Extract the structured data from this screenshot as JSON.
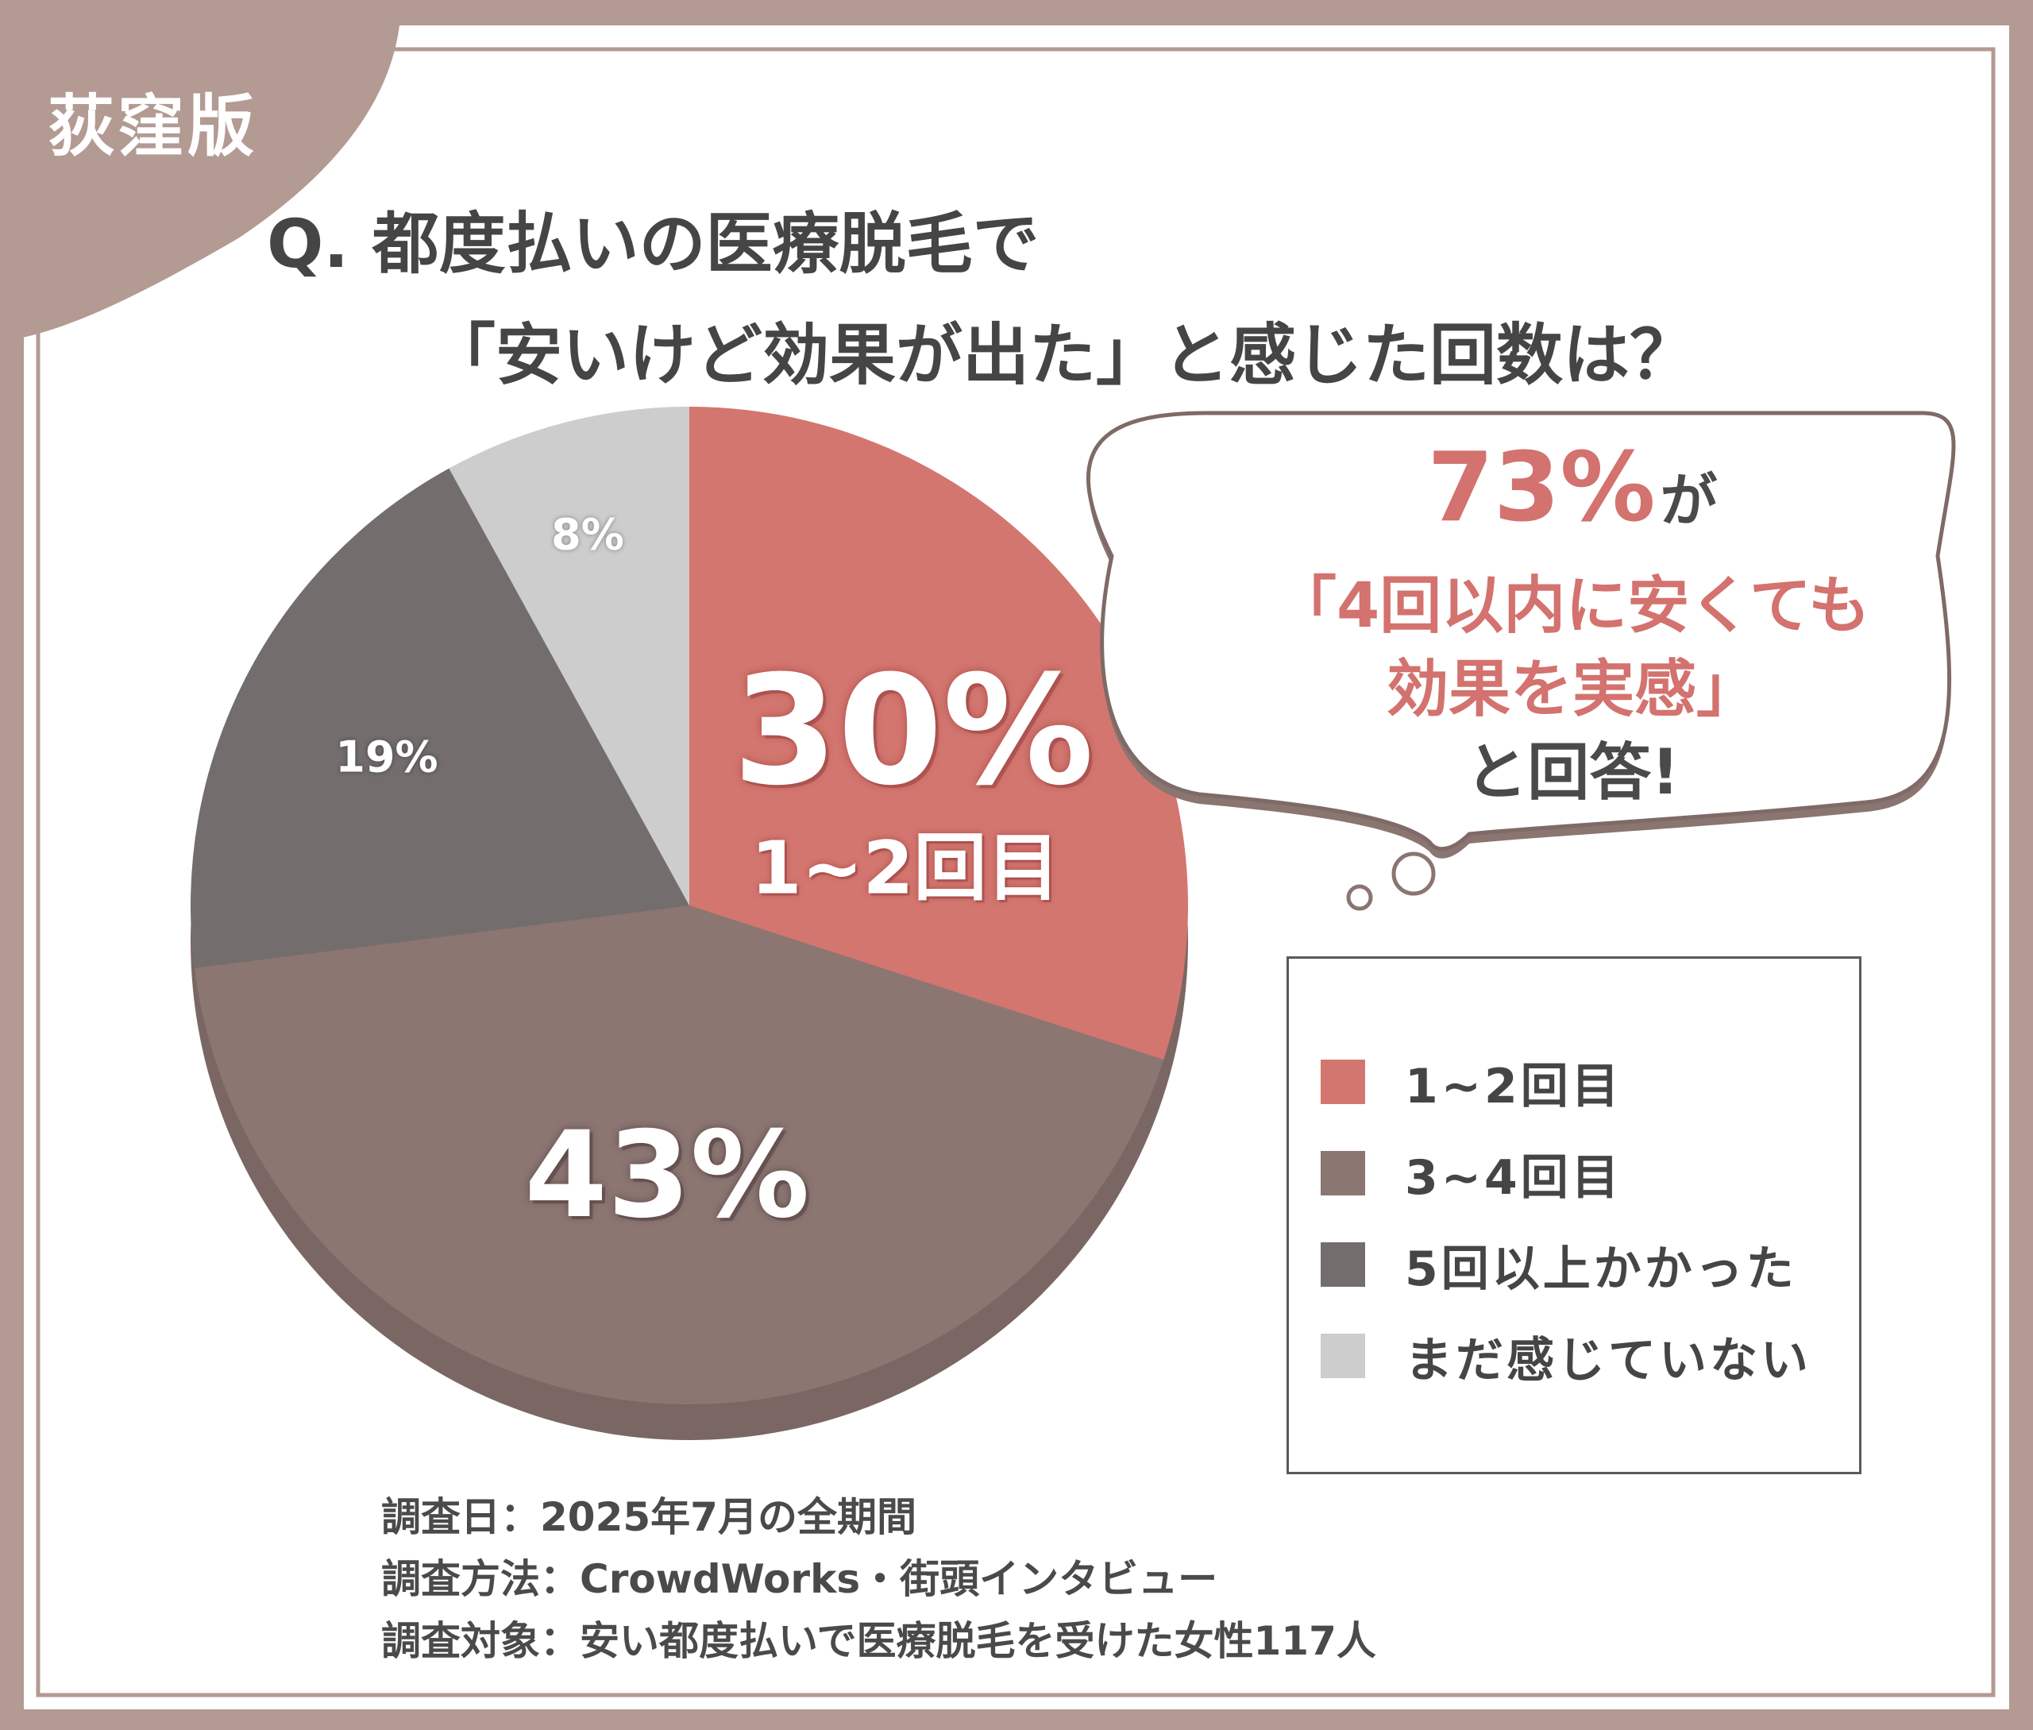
{
  "tag": "荻窪版",
  "title_line1": "Q. 都度払いの医療脱毛で",
  "title_line2": "「安いけど効果が出た」と感じた回数は？",
  "colors": {
    "frame": "#b39a92",
    "bg": "#ffffff",
    "s1": "#d3766f",
    "s2": "#8b7672",
    "s3": "#736d6d",
    "s4": "#cdcdcd"
  },
  "chart_data": {
    "type": "pie",
    "start": "12 o'clock",
    "direction": "clockwise",
    "slices": [
      {
        "name": "1~2回目",
        "value": 30,
        "label": "30%",
        "sublabel": "1~2回目",
        "color": "#d3766f"
      },
      {
        "name": "3~4回目",
        "value": 43,
        "label": "43%",
        "color": "#8b7672"
      },
      {
        "name": "5回以上かかった",
        "value": 19,
        "label": "19%",
        "color": "#736d6d"
      },
      {
        "name": "まだ感じていない",
        "value": 8,
        "label": "8%",
        "color": "#cdcdcd"
      }
    ],
    "legend_position": "bottom-right"
  },
  "bubble": {
    "line1_value": "73%",
    "line1_suffix": "が",
    "line2": "「4回以内に安くても",
    "line3": "効果を実感」",
    "line4": "と回答!"
  },
  "notes": [
    "調査日：2025年7月の全期間",
    "調査方法：CrowdWorks・街頭インタビュー",
    "調査対象：安い都度払いで医療脱毛を受けた女性117人"
  ]
}
